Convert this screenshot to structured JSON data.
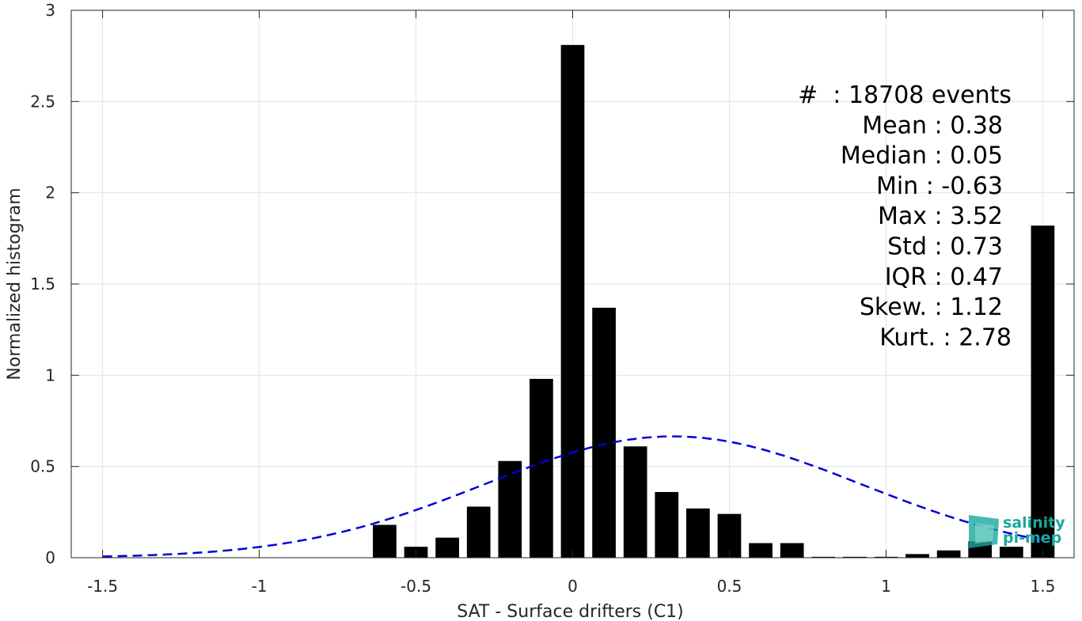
{
  "chart_data": {
    "type": "bar",
    "xlabel": "SAT - Surface drifters (C1)",
    "ylabel": "Normalized histogram",
    "xlim": [
      -1.6,
      1.6
    ],
    "ylim": [
      0,
      3
    ],
    "xticks": [
      -1.5,
      -1,
      -0.5,
      0,
      0.5,
      1,
      1.5
    ],
    "xtick_labels": [
      "-1.5",
      "-1",
      "-0.5",
      "0",
      "0.5",
      "1",
      "1.5"
    ],
    "yticks": [
      0,
      0.5,
      1,
      1.5,
      2,
      2.5,
      3
    ],
    "ytick_labels": [
      "0",
      "0.5",
      "1",
      "1.5",
      "2",
      "2.5",
      "3"
    ],
    "grid": true,
    "bar_width": 0.075,
    "bar_color": "#000000",
    "bins": [
      {
        "x": -0.6,
        "y": 0.18
      },
      {
        "x": -0.5,
        "y": 0.06
      },
      {
        "x": -0.4,
        "y": 0.11
      },
      {
        "x": -0.3,
        "y": 0.28
      },
      {
        "x": -0.2,
        "y": 0.53
      },
      {
        "x": -0.1,
        "y": 0.98
      },
      {
        "x": 0.0,
        "y": 2.81
      },
      {
        "x": 0.1,
        "y": 1.37
      },
      {
        "x": 0.2,
        "y": 0.61
      },
      {
        "x": 0.3,
        "y": 0.36
      },
      {
        "x": 0.4,
        "y": 0.27
      },
      {
        "x": 0.5,
        "y": 0.24
      },
      {
        "x": 0.6,
        "y": 0.08
      },
      {
        "x": 0.7,
        "y": 0.08
      },
      {
        "x": 0.8,
        "y": 0.005
      },
      {
        "x": 0.9,
        "y": 0.005
      },
      {
        "x": 1.0,
        "y": 0.005
      },
      {
        "x": 1.1,
        "y": 0.02
      },
      {
        "x": 1.2,
        "y": 0.04
      },
      {
        "x": 1.3,
        "y": 0.09
      },
      {
        "x": 1.4,
        "y": 0.06
      },
      {
        "x": 1.5,
        "y": 1.82
      }
    ],
    "fit_curve": {
      "type": "normal",
      "mean": 0.32,
      "std": 0.6,
      "x_range": [
        -1.5,
        1.5
      ],
      "color": "#0000dd",
      "style": "dashed"
    },
    "annotations": [
      "#  : 18708 events",
      "Mean : 0.38",
      "Median : 0.05",
      "Min : -0.63",
      "Max : 3.52",
      "Std : 0.73",
      "IQR : 0.47",
      "Skew. : 1.12",
      "Kurt. : 2.78"
    ]
  },
  "logo": {
    "line1": "salinity",
    "line2": "pi-mep",
    "color": "#1aa89c"
  }
}
